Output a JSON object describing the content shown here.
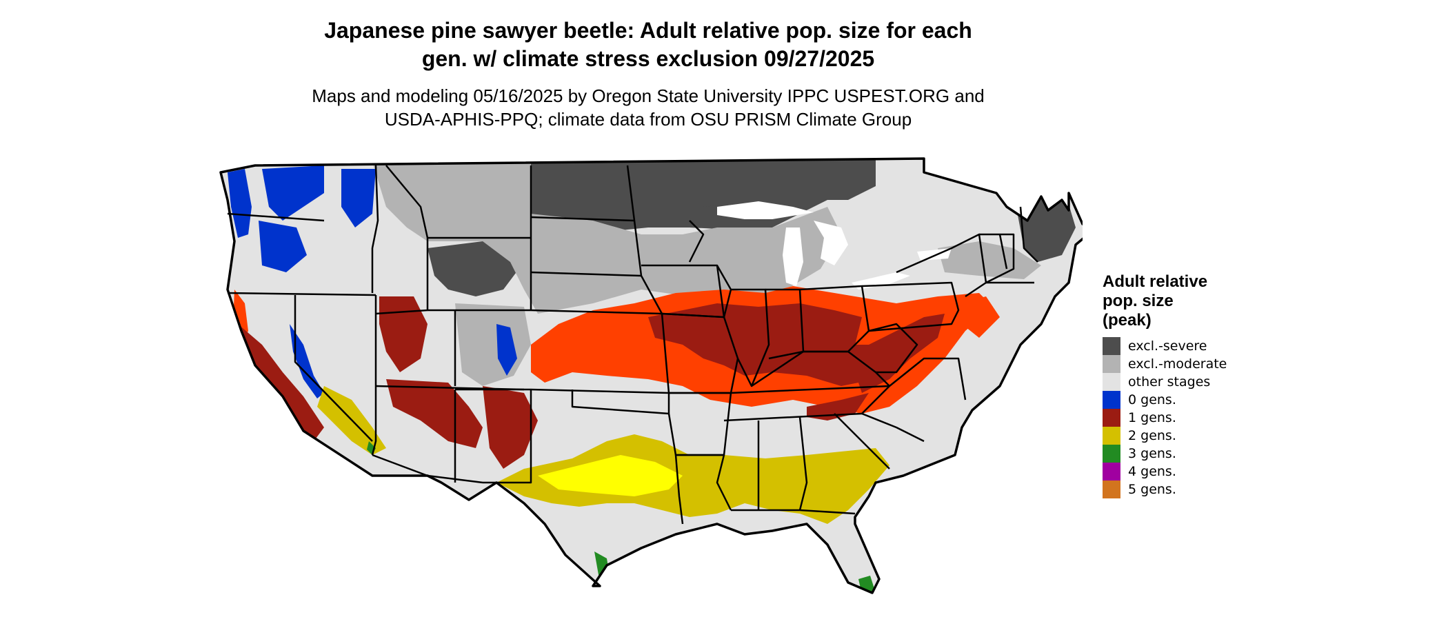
{
  "title_line1": "Japanese pine sawyer beetle: Adult relative pop. size for each",
  "title_line2": "gen. w/ climate stress exclusion 09/27/2025",
  "subtitle_line1": "Maps and modeling 05/16/2025 by Oregon State University IPPC USPEST.ORG and",
  "subtitle_line2": "USDA-APHIS-PPQ; climate data from OSU PRISM Climate Group",
  "legend": {
    "title_line1": "Adult relative",
    "title_line2": "pop. size",
    "title_line3": "(peak)",
    "items": [
      {
        "label": "excl.-severe",
        "color": "#4d4d4d"
      },
      {
        "label": "excl.-moderate",
        "color": "#b3b3b3"
      },
      {
        "label": "other stages",
        "color": "#e3e3e3"
      },
      {
        "label": "0 gens.",
        "color": "#0033cc"
      },
      {
        "label": "1 gens.",
        "color": "#9b1c12"
      },
      {
        "label": "2 gens.",
        "color": "#d4c000"
      },
      {
        "label": "3 gens.",
        "color": "#228b22"
      },
      {
        "label": "4 gens.",
        "color": "#a000a0"
      },
      {
        "label": "5 gens.",
        "color": "#d2741e"
      }
    ]
  },
  "map_colors": {
    "severe": "#4d4d4d",
    "moderate": "#b3b3b3",
    "other": "#e3e3e3",
    "zero_gens": "#0033cc",
    "one_gen": "#9b1c12",
    "one_gen_light": "#ff4000",
    "two_gens": "#d4c000",
    "two_gens_light": "#ffff00",
    "three_gens": "#228b22",
    "border": "#000000"
  }
}
